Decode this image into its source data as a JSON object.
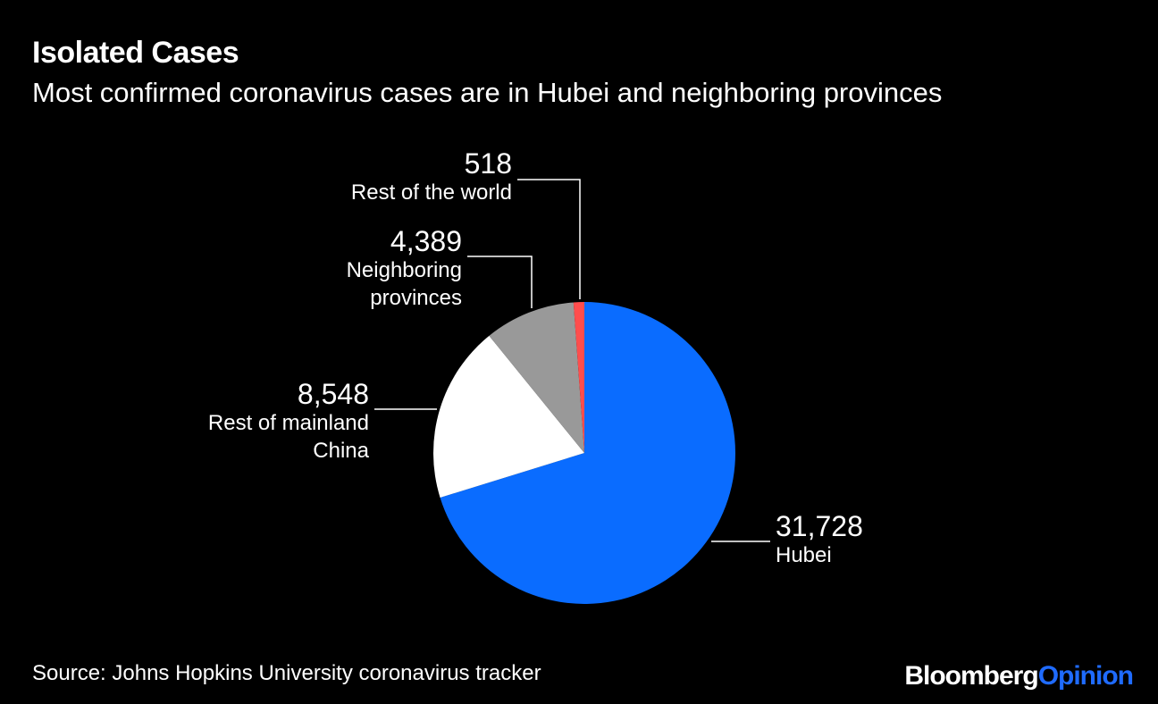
{
  "header": {
    "title": "Isolated Cases",
    "subtitle": "Most confirmed coronavirus cases are in Hubei and neighboring provinces"
  },
  "chart_data": {
    "type": "pie",
    "title": "Isolated Cases",
    "subtitle": "Most confirmed coronavirus cases are in Hubei and neighboring provinces",
    "slices": [
      {
        "label": "Hubei",
        "value": 31728,
        "value_label": "31,728",
        "name_lines": [
          "Hubei"
        ],
        "color": "#0a6cff"
      },
      {
        "label": "Rest of mainland China",
        "value": 8548,
        "value_label": "8,548",
        "name_lines": [
          "Rest of mainland",
          "China"
        ],
        "color": "#ffffff"
      },
      {
        "label": "Neighboring provinces",
        "value": 4389,
        "value_label": "4,389",
        "name_lines": [
          "Neighboring",
          "provinces"
        ],
        "color": "#999999"
      },
      {
        "label": "Rest of the world",
        "value": 518,
        "value_label": "518",
        "name_lines": [
          "Rest of the world"
        ],
        "color": "#ff4d4d"
      }
    ],
    "start_angle_deg": 0,
    "direction": "clockwise"
  },
  "footer": {
    "source": "Source: Johns Hopkins University coronavirus tracker",
    "brand_part1": "Bloomberg",
    "brand_part2": "Opinion"
  },
  "colors": {
    "background": "#000000",
    "text": "#ffffff",
    "brand_accent": "#1f6bff"
  }
}
